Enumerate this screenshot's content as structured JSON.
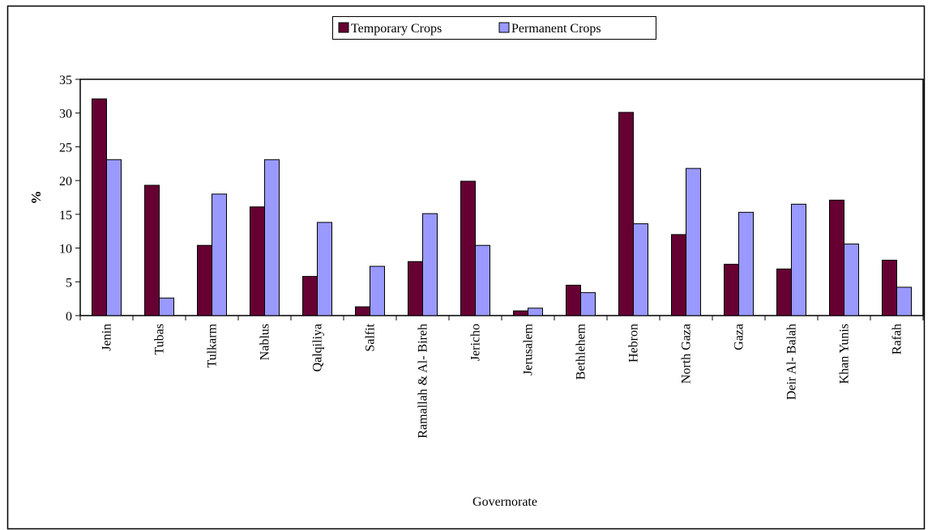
{
  "chart_data": {
    "type": "bar",
    "title": "",
    "xlabel": "Governorate",
    "ylabel": "%",
    "ylim": [
      0,
      35
    ],
    "yticks": [
      0,
      5,
      10,
      15,
      20,
      25,
      30,
      35
    ],
    "grid": false,
    "legend_position": "top-center",
    "categories": [
      "Jenin",
      "Tubas",
      "Tulkarm",
      "Nablus",
      "Qalqiliya",
      "Salfit",
      "Ramallah & Al- Bireh",
      "Jericho",
      "Jerusalem",
      "Bethlehem",
      "Hebron",
      "North Gaza",
      "Gaza",
      "Deir Al- Balah",
      "Khan Yunis",
      "Rafah"
    ],
    "series": [
      {
        "name": "Temporary Crops",
        "color": "#660033",
        "values": [
          32.1,
          19.3,
          10.4,
          16.1,
          5.8,
          1.3,
          8.0,
          19.9,
          0.7,
          4.5,
          30.1,
          12.0,
          7.6,
          6.9,
          17.1,
          8.2
        ]
      },
      {
        "name": "Permanent Crops",
        "color": "#9999ff",
        "values": [
          23.1,
          2.6,
          18.0,
          23.1,
          13.8,
          7.3,
          15.1,
          10.4,
          1.1,
          3.4,
          13.6,
          21.8,
          15.3,
          16.5,
          10.6,
          4.2
        ]
      }
    ]
  }
}
